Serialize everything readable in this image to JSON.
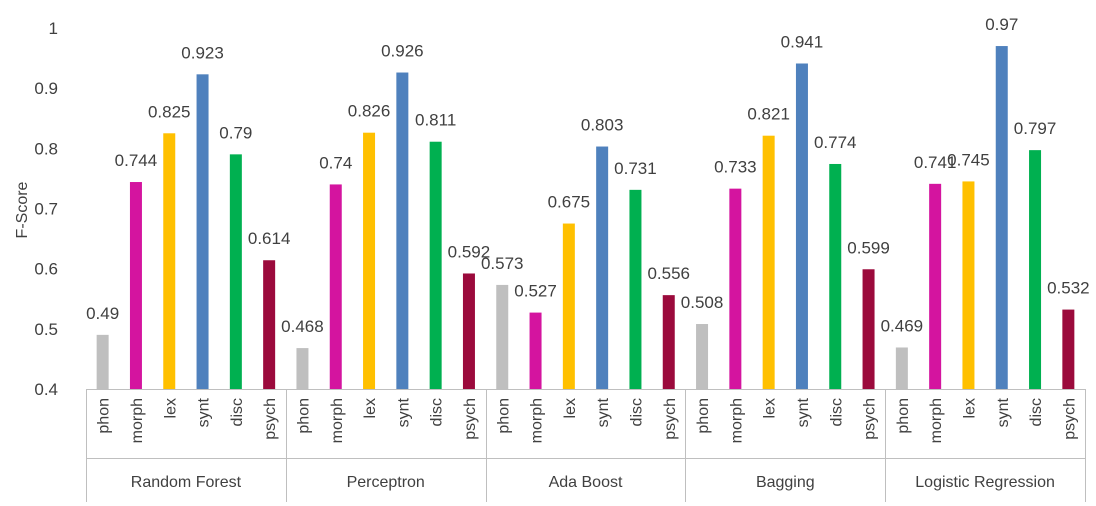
{
  "chart_data": {
    "type": "bar",
    "ylabel": "F-Score",
    "ylim": [
      0.4,
      1
    ],
    "yticks": [
      "0.4",
      "0.5",
      "0.6",
      "0.7",
      "0.8",
      "0.9",
      "1"
    ],
    "grid": false,
    "categories": [
      "phon",
      "morph",
      "lex",
      "synt",
      "disc",
      "psych"
    ],
    "category_colors": [
      "#bfbfbf",
      "#d4149f",
      "#ffc000",
      "#4f81bd",
      "#00b050",
      "#9b0a3c"
    ],
    "groups": [
      {
        "name": "Random Forest",
        "values": [
          0.49,
          0.744,
          0.825,
          0.923,
          0.79,
          0.614
        ],
        "labels": [
          "0.49",
          "0.744",
          "0.825",
          "0.923",
          "0.79",
          "0.614"
        ]
      },
      {
        "name": "Perceptron",
        "values": [
          0.468,
          0.74,
          0.826,
          0.926,
          0.811,
          0.592
        ],
        "labels": [
          "0.468",
          "0.74",
          "0.826",
          "0.926",
          "0.811",
          "0.592"
        ]
      },
      {
        "name": "Ada Boost",
        "values": [
          0.573,
          0.527,
          0.675,
          0.803,
          0.731,
          0.556
        ],
        "labels": [
          "0.573",
          "0.527",
          "0.675",
          "0.803",
          "0.731",
          "0.556"
        ]
      },
      {
        "name": "Bagging",
        "values": [
          0.508,
          0.733,
          0.821,
          0.941,
          0.774,
          0.599
        ],
        "labels": [
          "0.508",
          "0.733",
          "0.821",
          "0.941",
          "0.774",
          "0.599"
        ]
      },
      {
        "name": "Logistic Regression",
        "values": [
          0.469,
          0.741,
          0.745,
          0.97,
          0.797,
          0.532
        ],
        "labels": [
          "0.469",
          "0.741",
          "0.745",
          "0.97",
          "0.797",
          "0.532"
        ]
      }
    ]
  }
}
